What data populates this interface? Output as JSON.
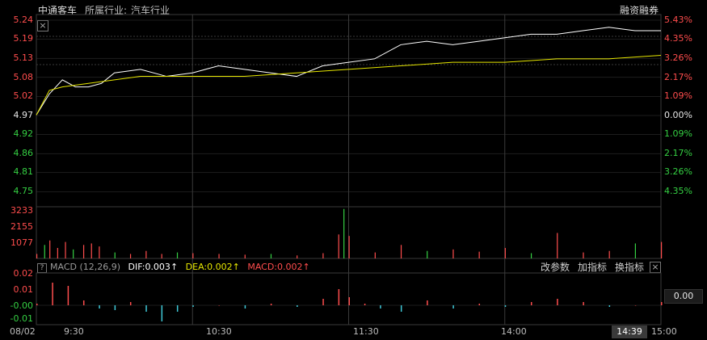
{
  "header": {
    "stock_name": "中通客车",
    "industry_label": "所属行业:",
    "industry_value": "汽车行业",
    "margin_label": "融资融券"
  },
  "price_axis": {
    "left_labels": [
      "5.24",
      "5.19",
      "5.13",
      "5.08",
      "5.02",
      "4.97",
      "4.92",
      "4.86",
      "4.81",
      "4.75"
    ],
    "right_labels": [
      "5.43%",
      "4.35%",
      "3.26%",
      "2.17%",
      "1.09%",
      "0.00%",
      "1.09%",
      "2.17%",
      "3.26%",
      "4.35%"
    ]
  },
  "volume_axis": {
    "labels": [
      "3233",
      "2155",
      "1077"
    ]
  },
  "macd": {
    "title": "MACD (12,26,9)",
    "dif_label": "DIF:0.003",
    "dea_label": "DEA:0.002",
    "macd_label": "MACD:0.002",
    "axis_labels": [
      "0.02",
      "0.01",
      "-0.00",
      "-0.01"
    ],
    "current_value": "0.00",
    "buttons": [
      "改参数",
      "加指标",
      "换指标"
    ]
  },
  "time_axis": {
    "labels": [
      "08/02",
      "9:30",
      "10:30",
      "11:30",
      "14:00",
      "15:00"
    ],
    "current_time": "14:39"
  },
  "colors": {
    "up": "#ff4d4d",
    "down": "#35d043",
    "price_line": "#ffffff",
    "avg_line": "#e6e600",
    "macd_down": "#3fc7d6",
    "grid": "#3a3a3a"
  },
  "chart_data": [
    {
      "type": "line",
      "series": [
        {
          "name": "",
          "x": [
            0,
            5,
            10,
            15,
            20,
            25,
            30,
            40,
            50,
            60,
            70,
            80,
            90,
            100,
            110,
            120,
            130,
            140,
            150,
            160,
            170,
            180,
            190,
            200,
            210,
            220,
            230,
            240
          ],
          "values": [
            4.97,
            5.03,
            5.07,
            5.05,
            5.05,
            5.06,
            5.09,
            5.1,
            5.08,
            5.09,
            5.11,
            5.1,
            5.09,
            5.08,
            5.11,
            5.12,
            5.13,
            5.17,
            5.18,
            5.17,
            5.18,
            5.19,
            5.2,
            5.2,
            5.21,
            5.22,
            5.21,
            5.21
          ]
        },
        {
          "name": "",
          "x": [
            0,
            5,
            10,
            20,
            30,
            40,
            50,
            60,
            80,
            100,
            120,
            140,
            160,
            180,
            200,
            220,
            240
          ],
          "values": [
            4.97,
            5.04,
            5.05,
            5.06,
            5.07,
            5.08,
            5.08,
            5.08,
            5.08,
            5.09,
            5.1,
            5.11,
            5.12,
            5.12,
            5.13,
            5.13,
            5.14
          ]
        }
      ]
    },
    {
      "type": "bar",
      "x": [
        0,
        3,
        5,
        8,
        11,
        14,
        18,
        21,
        24,
        30,
        36,
        42,
        48,
        54,
        60,
        70,
        80,
        90,
        100,
        110,
        116,
        118,
        120,
        130,
        140,
        150,
        160,
        170,
        180,
        190,
        200,
        210,
        220,
        230,
        240
      ],
      "values": [
        300,
        900,
        1200,
        700,
        1100,
        600,
        900,
        1000,
        800,
        400,
        300,
        500,
        300,
        400,
        350,
        300,
        250,
        300,
        200,
        350,
        1600,
        3300,
        1500,
        400,
        900,
        500,
        600,
        450,
        700,
        350,
        1700,
        400,
        500,
        1000,
        1100
      ]
    },
    {
      "type": "bar",
      "x": [
        0,
        6,
        12,
        18,
        24,
        30,
        36,
        42,
        48,
        54,
        60,
        70,
        80,
        90,
        100,
        110,
        116,
        120,
        126,
        132,
        140,
        150,
        160,
        170,
        180,
        190,
        200,
        210,
        220,
        230,
        240
      ],
      "values": [
        0.001,
        0.014,
        0.012,
        0.003,
        -0.002,
        -0.003,
        0.002,
        -0.004,
        -0.01,
        -0.004,
        -0.001,
        0.0,
        -0.002,
        0.001,
        -0.001,
        0.004,
        0.01,
        0.005,
        0.001,
        -0.002,
        -0.004,
        0.003,
        -0.002,
        0.001,
        -0.001,
        0.002,
        0.004,
        0.002,
        -0.001,
        0.0,
        0.002
      ]
    }
  ]
}
